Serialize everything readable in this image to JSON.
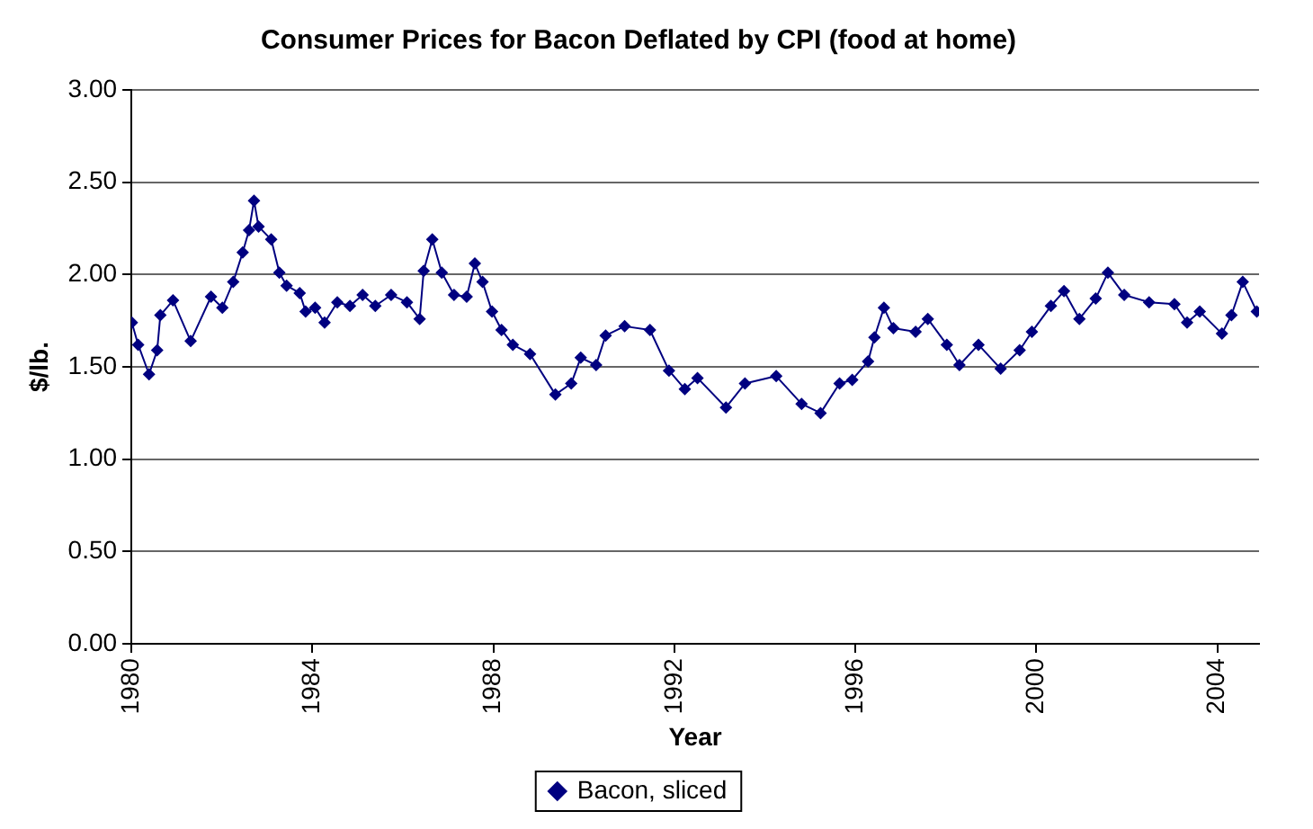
{
  "chart_data": {
    "type": "line",
    "title": "Consumer Prices for Bacon Deflated by CPI (food at home)",
    "xlabel": "Year",
    "ylabel": "$/lb.",
    "xlim": [
      1980,
      2004.92
    ],
    "xticks": [
      1980,
      1984,
      1988,
      1992,
      1996,
      2000,
      2004
    ],
    "ylim": [
      0,
      3
    ],
    "yticks": [
      {
        "value": 0,
        "label": "0.00"
      },
      {
        "value": 0.5,
        "label": "0.50"
      },
      {
        "value": 1,
        "label": "1.00"
      },
      {
        "value": 1.5,
        "label": "1.50"
      },
      {
        "value": 2,
        "label": "2.00"
      },
      {
        "value": 2.5,
        "label": "2.50"
      },
      {
        "value": 3,
        "label": "3.00"
      }
    ],
    "grid": "y",
    "legend": "bottom",
    "marker": "diamond",
    "line_style": "solid",
    "x": [
      1980.01,
      1980.15,
      1980.39,
      1980.57,
      1980.64,
      1980.92,
      1981.31,
      1981.76,
      1982.01,
      1982.25,
      1982.46,
      1982.6,
      1982.71,
      1982.81,
      1983.09,
      1983.27,
      1983.43,
      1983.72,
      1983.85,
      1984.06,
      1984.27,
      1984.55,
      1984.83,
      1985.11,
      1985.39,
      1985.74,
      1986.09,
      1986.37,
      1986.46,
      1986.65,
      1986.86,
      1987.13,
      1987.41,
      1987.59,
      1987.76,
      1987.97,
      1988.18,
      1988.43,
      1988.81,
      1989.37,
      1989.72,
      1989.93,
      1990.27,
      1990.48,
      1990.9,
      1991.46,
      1991.88,
      1992.23,
      1992.51,
      1993.14,
      1993.56,
      1994.25,
      1994.81,
      1995.23,
      1995.65,
      1995.93,
      1996.28,
      1996.42,
      1996.63,
      1996.84,
      1997.33,
      1997.6,
      1998.02,
      1998.3,
      1998.72,
      1999.21,
      1999.63,
      1999.9,
      2000.32,
      2000.61,
      2000.95,
      2001.31,
      2001.58,
      2001.94,
      2002.49,
      2003.05,
      2003.33,
      2003.61,
      2004.1,
      2004.31,
      2004.56,
      2004.87
    ],
    "series": [
      {
        "name": "Bacon, sliced",
        "color": "#000080",
        "values": [
          1.74,
          1.62,
          1.46,
          1.59,
          1.78,
          1.86,
          1.64,
          1.88,
          1.82,
          1.96,
          2.12,
          2.24,
          2.4,
          2.26,
          2.19,
          2.01,
          1.94,
          1.9,
          1.8,
          1.82,
          1.74,
          1.85,
          1.83,
          1.89,
          1.83,
          1.89,
          1.85,
          1.76,
          2.02,
          2.19,
          2.01,
          1.89,
          1.88,
          2.06,
          1.96,
          1.8,
          1.7,
          1.62,
          1.57,
          1.35,
          1.41,
          1.55,
          1.51,
          1.67,
          1.72,
          1.7,
          1.48,
          1.38,
          1.44,
          1.28,
          1.41,
          1.45,
          1.3,
          1.25,
          1.41,
          1.43,
          1.53,
          1.66,
          1.82,
          1.71,
          1.69,
          1.76,
          1.62,
          1.51,
          1.62,
          1.49,
          1.59,
          1.69,
          1.83,
          1.91,
          1.76,
          1.87,
          2.01,
          1.89,
          1.85,
          1.84,
          1.74,
          1.8,
          1.68,
          1.78,
          1.96,
          1.8
        ]
      }
    ]
  }
}
